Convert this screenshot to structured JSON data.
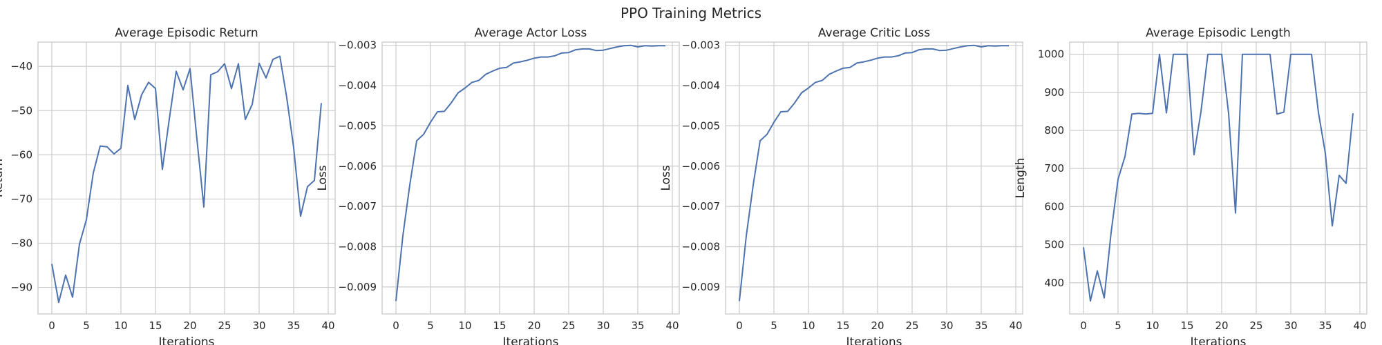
{
  "figure": {
    "title": "PPO Training Metrics"
  },
  "colors": {
    "line": "#4c72b0",
    "grid": "#cccccc",
    "text": "#262626"
  },
  "chart_data": [
    {
      "type": "line",
      "title": "Average Episodic Return",
      "xlabel": "Iterations",
      "ylabel": "Return",
      "xlim": [
        -2,
        41
      ],
      "ylim": [
        -96,
        -34.5
      ],
      "xticks": [
        0,
        5,
        10,
        15,
        20,
        25,
        30,
        35,
        40
      ],
      "yticks": [
        -90,
        -80,
        -70,
        -60,
        -50,
        -40
      ],
      "grid": true,
      "x": [
        0,
        1,
        2,
        3,
        4,
        5,
        6,
        7,
        8,
        9,
        10,
        11,
        12,
        13,
        14,
        15,
        16,
        17,
        18,
        19,
        20,
        21,
        22,
        23,
        24,
        25,
        26,
        27,
        28,
        29,
        30,
        31,
        32,
        33,
        34,
        35,
        36,
        37,
        38,
        39
      ],
      "y": [
        -84.7,
        -93.4,
        -87.2,
        -92.2,
        -80.2,
        -74.7,
        -64.1,
        -58.0,
        -58.2,
        -59.8,
        -58.5,
        -44.3,
        -52.0,
        -46.4,
        -43.6,
        -45.0,
        -63.3,
        -51.9,
        -41.1,
        -45.3,
        -40.5,
        -56.5,
        -71.8,
        -41.9,
        -41.2,
        -39.4,
        -45.0,
        -39.4,
        -52.0,
        -48.6,
        -39.3,
        -42.6,
        -38.4,
        -37.7,
        -47.1,
        -58.4,
        -73.9,
        -67.2,
        -65.8,
        -48.3
      ]
    },
    {
      "type": "line",
      "title": "Average Actor Loss",
      "xlabel": "Iterations",
      "ylabel": "Loss",
      "xlim": [
        -2,
        41
      ],
      "ylim": [
        -0.00967,
        -0.00292
      ],
      "xticks": [
        0,
        5,
        10,
        15,
        20,
        25,
        30,
        35,
        40
      ],
      "yticks": [
        -0.009,
        -0.008,
        -0.007,
        -0.006,
        -0.005,
        -0.004,
        -0.003
      ],
      "ytick_labels": [
        "−0.009",
        "−0.008",
        "−0.007",
        "−0.006",
        "−0.005",
        "−0.004",
        "−0.003"
      ],
      "grid": true,
      "x": [
        0,
        1,
        2,
        3,
        4,
        5,
        6,
        7,
        8,
        9,
        10,
        11,
        12,
        13,
        14,
        15,
        16,
        17,
        18,
        19,
        20,
        21,
        22,
        23,
        24,
        25,
        26,
        27,
        28,
        29,
        30,
        31,
        32,
        33,
        34,
        35,
        36,
        37,
        38,
        39
      ],
      "y": [
        -0.00935,
        -0.00773,
        -0.00647,
        -0.00537,
        -0.00521,
        -0.00491,
        -0.00465,
        -0.00464,
        -0.00443,
        -0.00418,
        -0.00406,
        -0.00392,
        -0.00387,
        -0.00372,
        -0.00364,
        -0.00357,
        -0.00355,
        -0.00344,
        -0.00341,
        -0.00337,
        -0.00332,
        -0.00329,
        -0.00329,
        -0.00326,
        -0.00319,
        -0.00318,
        -0.00311,
        -0.00309,
        -0.00309,
        -0.00313,
        -0.00312,
        -0.00308,
        -0.00304,
        -0.00301,
        -0.003,
        -0.00304,
        -0.00301,
        -0.00302,
        -0.00301,
        -0.00301
      ]
    },
    {
      "type": "line",
      "title": "Average Critic Loss",
      "xlabel": "Iterations",
      "ylabel": "Loss",
      "xlim": [
        -2,
        41
      ],
      "ylim": [
        -0.00967,
        -0.00292
      ],
      "xticks": [
        0,
        5,
        10,
        15,
        20,
        25,
        30,
        35,
        40
      ],
      "yticks": [
        -0.009,
        -0.008,
        -0.007,
        -0.006,
        -0.005,
        -0.004,
        -0.003
      ],
      "ytick_labels": [
        "−0.009",
        "−0.008",
        "−0.007",
        "−0.006",
        "−0.005",
        "−0.004",
        "−0.003"
      ],
      "grid": true,
      "x": [
        0,
        1,
        2,
        3,
        4,
        5,
        6,
        7,
        8,
        9,
        10,
        11,
        12,
        13,
        14,
        15,
        16,
        17,
        18,
        19,
        20,
        21,
        22,
        23,
        24,
        25,
        26,
        27,
        28,
        29,
        30,
        31,
        32,
        33,
        34,
        35,
        36,
        37,
        38,
        39
      ],
      "y": [
        -0.00935,
        -0.00773,
        -0.00647,
        -0.00537,
        -0.00521,
        -0.00491,
        -0.00465,
        -0.00464,
        -0.00443,
        -0.00418,
        -0.00406,
        -0.00392,
        -0.00387,
        -0.00372,
        -0.00364,
        -0.00357,
        -0.00355,
        -0.00344,
        -0.00341,
        -0.00337,
        -0.00332,
        -0.00329,
        -0.00329,
        -0.00326,
        -0.00319,
        -0.00318,
        -0.00311,
        -0.00309,
        -0.00309,
        -0.00313,
        -0.00312,
        -0.00308,
        -0.00304,
        -0.00301,
        -0.003,
        -0.00304,
        -0.00301,
        -0.00302,
        -0.00301,
        -0.00301
      ]
    },
    {
      "type": "line",
      "title": "Average Episodic Length",
      "xlabel": "Iterations",
      "ylabel": "Length",
      "xlim": [
        -2,
        41
      ],
      "ylim": [
        318,
        1032
      ],
      "xticks": [
        0,
        5,
        10,
        15,
        20,
        25,
        30,
        35,
        40
      ],
      "yticks": [
        400,
        500,
        600,
        700,
        800,
        900,
        1000
      ],
      "grid": true,
      "x": [
        0,
        1,
        2,
        3,
        4,
        5,
        6,
        7,
        8,
        9,
        10,
        11,
        12,
        13,
        14,
        15,
        16,
        17,
        18,
        19,
        20,
        21,
        22,
        23,
        24,
        25,
        26,
        27,
        28,
        29,
        30,
        31,
        32,
        33,
        34,
        35,
        36,
        37,
        38,
        39
      ],
      "y": [
        493,
        352,
        431,
        360,
        532,
        672,
        731,
        843,
        845,
        843,
        845,
        1000,
        846,
        1000,
        1000,
        1000,
        736,
        849,
        1000,
        1000,
        1000,
        845,
        583,
        1000,
        1000,
        1000,
        1000,
        1000,
        843,
        848,
        1000,
        1000,
        1000,
        1000,
        847,
        740,
        549,
        682,
        661,
        845
      ]
    }
  ]
}
